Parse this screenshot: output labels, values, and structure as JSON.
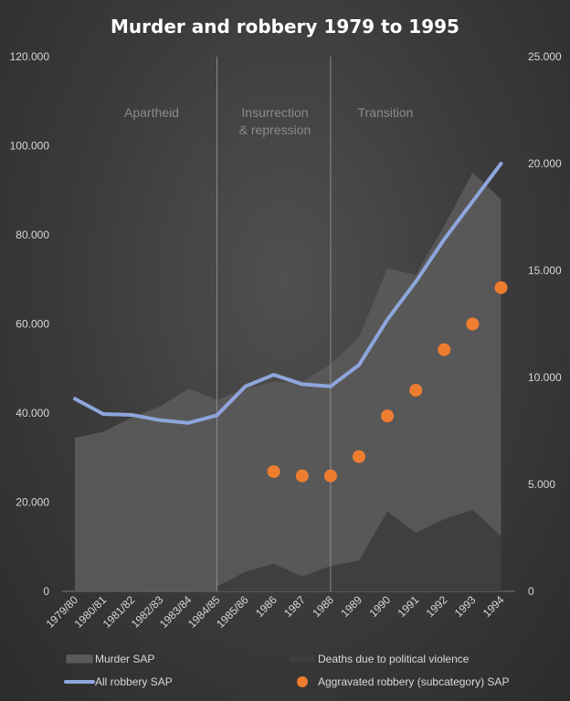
{
  "chart_data": {
    "type": "area",
    "title": "Murder and robbery 1979 to 1995",
    "categories": [
      "1979/80",
      "1980/81",
      "1981/82",
      "1982/83",
      "1983/84",
      "1984/85",
      "1985/86",
      "1986",
      "1987",
      "1988",
      "1989",
      "1990",
      "1991",
      "1992",
      "1993",
      "1994"
    ],
    "left_axis": {
      "ylim": [
        0,
        120000
      ],
      "ticks": [
        "0",
        "20.000",
        "40.000",
        "60.000",
        "80.000",
        "100.000",
        "120.000"
      ],
      "tick_values": [
        0,
        20000,
        40000,
        60000,
        80000,
        100000,
        120000
      ]
    },
    "right_axis": {
      "ylim": [
        0,
        25000
      ],
      "ticks": [
        "0",
        "5.000",
        "10.000",
        "15.000",
        "20.000",
        "25.000"
      ],
      "tick_values": [
        0,
        5000,
        10000,
        15000,
        20000,
        25000
      ]
    },
    "series": [
      {
        "name": "Murder SAP",
        "type": "area",
        "axis": "left",
        "color": "#5a5a5a",
        "values": [
          34500,
          35800,
          39000,
          41500,
          45500,
          43000,
          45500,
          47000,
          47000,
          51000,
          57000,
          72500,
          71000,
          82000,
          94000,
          88000
        ]
      },
      {
        "name": "Deaths due to political violence",
        "type": "area",
        "axis": "left",
        "color": "#3d3d3d",
        "values": [
          null,
          null,
          null,
          null,
          null,
          1100,
          4400,
          6200,
          3300,
          5700,
          6900,
          17900,
          13100,
          16200,
          18300,
          12400
        ]
      },
      {
        "name": "All robbery SAP",
        "type": "line",
        "axis": "left",
        "color": "#8ea6dc",
        "values": [
          43200,
          39800,
          39600,
          38400,
          37800,
          39500,
          46000,
          48600,
          46500,
          46000,
          50800,
          61000,
          69500,
          79000,
          87500,
          96000
        ]
      },
      {
        "name": "Aggravated robbery (subcategory) SAP",
        "type": "scatter",
        "axis": "right",
        "color": "#ef7d2f",
        "values": [
          null,
          null,
          null,
          null,
          null,
          null,
          null,
          5600,
          5400,
          5400,
          6300,
          8200,
          9400,
          11300,
          12500,
          14200
        ]
      }
    ],
    "eras": [
      {
        "label_lines": [
          "Apartheid"
        ]
      },
      {
        "label_lines": [
          "Insurrection",
          "& repression"
        ]
      },
      {
        "label_lines": [
          "Transition"
        ]
      }
    ],
    "era_boundaries_after": [
      "1984/85",
      "1988"
    ],
    "legend": "bottom"
  }
}
